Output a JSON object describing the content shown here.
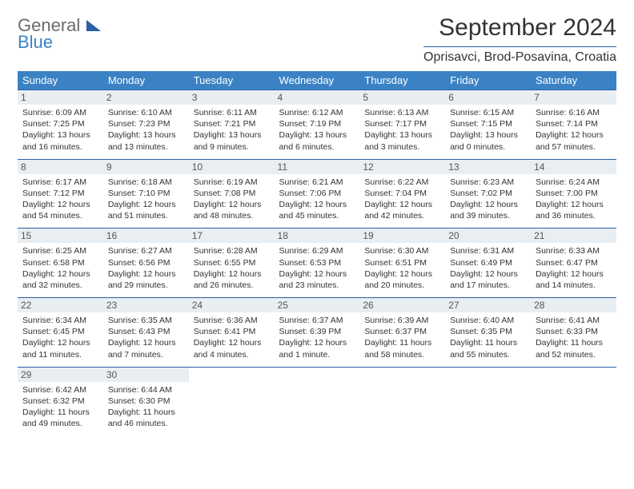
{
  "brand": {
    "line1": "General",
    "line2": "Blue"
  },
  "title": "September 2024",
  "location": "Oprisavci, Brod-Posavina, Croatia",
  "colors": {
    "header_bg": "#3b82c4",
    "rule": "#2a5fa5",
    "daynum_bg": "#e9eef3",
    "text": "#333333",
    "logo_gray": "#6b6b6b"
  },
  "weekdays": [
    "Sunday",
    "Monday",
    "Tuesday",
    "Wednesday",
    "Thursday",
    "Friday",
    "Saturday"
  ],
  "weeks": [
    [
      {
        "n": "1",
        "sr": "6:09 AM",
        "ss": "7:25 PM",
        "dl": "13 hours and 16 minutes."
      },
      {
        "n": "2",
        "sr": "6:10 AM",
        "ss": "7:23 PM",
        "dl": "13 hours and 13 minutes."
      },
      {
        "n": "3",
        "sr": "6:11 AM",
        "ss": "7:21 PM",
        "dl": "13 hours and 9 minutes."
      },
      {
        "n": "4",
        "sr": "6:12 AM",
        "ss": "7:19 PM",
        "dl": "13 hours and 6 minutes."
      },
      {
        "n": "5",
        "sr": "6:13 AM",
        "ss": "7:17 PM",
        "dl": "13 hours and 3 minutes."
      },
      {
        "n": "6",
        "sr": "6:15 AM",
        "ss": "7:15 PM",
        "dl": "13 hours and 0 minutes."
      },
      {
        "n": "7",
        "sr": "6:16 AM",
        "ss": "7:14 PM",
        "dl": "12 hours and 57 minutes."
      }
    ],
    [
      {
        "n": "8",
        "sr": "6:17 AM",
        "ss": "7:12 PM",
        "dl": "12 hours and 54 minutes."
      },
      {
        "n": "9",
        "sr": "6:18 AM",
        "ss": "7:10 PM",
        "dl": "12 hours and 51 minutes."
      },
      {
        "n": "10",
        "sr": "6:19 AM",
        "ss": "7:08 PM",
        "dl": "12 hours and 48 minutes."
      },
      {
        "n": "11",
        "sr": "6:21 AM",
        "ss": "7:06 PM",
        "dl": "12 hours and 45 minutes."
      },
      {
        "n": "12",
        "sr": "6:22 AM",
        "ss": "7:04 PM",
        "dl": "12 hours and 42 minutes."
      },
      {
        "n": "13",
        "sr": "6:23 AM",
        "ss": "7:02 PM",
        "dl": "12 hours and 39 minutes."
      },
      {
        "n": "14",
        "sr": "6:24 AM",
        "ss": "7:00 PM",
        "dl": "12 hours and 36 minutes."
      }
    ],
    [
      {
        "n": "15",
        "sr": "6:25 AM",
        "ss": "6:58 PM",
        "dl": "12 hours and 32 minutes."
      },
      {
        "n": "16",
        "sr": "6:27 AM",
        "ss": "6:56 PM",
        "dl": "12 hours and 29 minutes."
      },
      {
        "n": "17",
        "sr": "6:28 AM",
        "ss": "6:55 PM",
        "dl": "12 hours and 26 minutes."
      },
      {
        "n": "18",
        "sr": "6:29 AM",
        "ss": "6:53 PM",
        "dl": "12 hours and 23 minutes."
      },
      {
        "n": "19",
        "sr": "6:30 AM",
        "ss": "6:51 PM",
        "dl": "12 hours and 20 minutes."
      },
      {
        "n": "20",
        "sr": "6:31 AM",
        "ss": "6:49 PM",
        "dl": "12 hours and 17 minutes."
      },
      {
        "n": "21",
        "sr": "6:33 AM",
        "ss": "6:47 PM",
        "dl": "12 hours and 14 minutes."
      }
    ],
    [
      {
        "n": "22",
        "sr": "6:34 AM",
        "ss": "6:45 PM",
        "dl": "12 hours and 11 minutes."
      },
      {
        "n": "23",
        "sr": "6:35 AM",
        "ss": "6:43 PM",
        "dl": "12 hours and 7 minutes."
      },
      {
        "n": "24",
        "sr": "6:36 AM",
        "ss": "6:41 PM",
        "dl": "12 hours and 4 minutes."
      },
      {
        "n": "25",
        "sr": "6:37 AM",
        "ss": "6:39 PM",
        "dl": "12 hours and 1 minute."
      },
      {
        "n": "26",
        "sr": "6:39 AM",
        "ss": "6:37 PM",
        "dl": "11 hours and 58 minutes."
      },
      {
        "n": "27",
        "sr": "6:40 AM",
        "ss": "6:35 PM",
        "dl": "11 hours and 55 minutes."
      },
      {
        "n": "28",
        "sr": "6:41 AM",
        "ss": "6:33 PM",
        "dl": "11 hours and 52 minutes."
      }
    ],
    [
      {
        "n": "29",
        "sr": "6:42 AM",
        "ss": "6:32 PM",
        "dl": "11 hours and 49 minutes."
      },
      {
        "n": "30",
        "sr": "6:44 AM",
        "ss": "6:30 PM",
        "dl": "11 hours and 46 minutes."
      },
      null,
      null,
      null,
      null,
      null
    ]
  ],
  "labels": {
    "sunrise": "Sunrise:",
    "sunset": "Sunset:",
    "daylight": "Daylight:"
  }
}
